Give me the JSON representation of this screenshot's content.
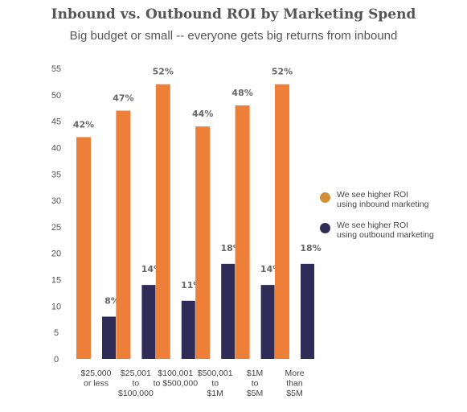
{
  "header": {
    "title": "Inbound vs. Outbound ROI by Marketing Spend",
    "subtitle": "Big budget or small -- everyone gets big returns from inbound"
  },
  "colors": {
    "inbound_bar": "#ee7f38",
    "inbound_legend": "#d28f3a",
    "outbound": "#2f2c57",
    "axis_text": "#555555"
  },
  "legend": {
    "items": [
      {
        "label": "We see higher ROI\nusing inbound marketing"
      },
      {
        "label": "We see higher ROI\nusing outbound marketing"
      }
    ]
  },
  "chart_data": {
    "type": "bar",
    "title": "Inbound vs. Outbound ROI by Marketing Spend",
    "subtitle": "Big budget or small -- everyone gets big returns from inbound",
    "xlabel": "",
    "ylabel": "",
    "ylim": [
      0,
      55
    ],
    "yticks": [
      0,
      5,
      10,
      15,
      20,
      25,
      30,
      35,
      40,
      45,
      50,
      55
    ],
    "grid": false,
    "legend_position": "right",
    "categories": [
      [
        "$25,000",
        "or less"
      ],
      [
        "$25,001",
        "to",
        "$100,000"
      ],
      [
        "$100,001",
        "to $500,000"
      ],
      [
        "$500,001",
        "to",
        "$1M"
      ],
      [
        "$1M",
        "to",
        "$5M"
      ],
      [
        "More",
        "than",
        "$5M"
      ]
    ],
    "series": [
      {
        "name": "We see higher ROI using inbound marketing",
        "values": [
          42,
          47,
          52,
          44,
          48,
          52
        ],
        "labels": [
          "42%",
          "47%",
          "52%",
          "44%",
          "48%",
          "52%"
        ]
      },
      {
        "name": "We see higher ROI using outbound marketing",
        "values": [
          8,
          14,
          11,
          18,
          14,
          18
        ],
        "labels": [
          "8%",
          "14%",
          "11%",
          "18%",
          "14%",
          "18%"
        ]
      }
    ]
  }
}
